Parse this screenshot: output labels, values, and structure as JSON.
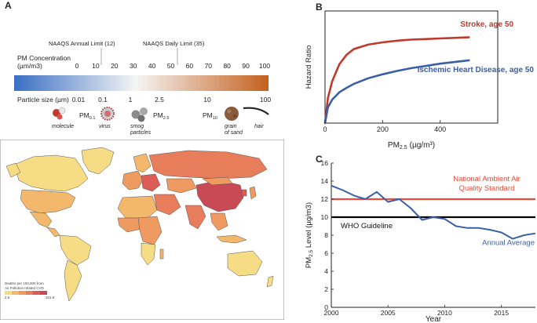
{
  "panels": {
    "a": {
      "label": "A"
    },
    "b": {
      "label": "B"
    },
    "c": {
      "label": "C"
    }
  },
  "scale": {
    "naaqs_annual": "NAAQS Annual Limit (12)",
    "naaqs_daily": "NAAQS Daily Limit (35)",
    "concentration_title_line1": "PM Concentration",
    "concentration_title_line2": "(µm/m3)",
    "ticks": [
      "0",
      "10",
      "20",
      "30",
      "40",
      "50",
      "60",
      "70",
      "80",
      "90",
      "100"
    ],
    "gradient": {
      "start": "#3a6fc4",
      "mid": "#f5f5f5",
      "end": "#c4601e"
    }
  },
  "particles": {
    "title": "Particle size (µm)",
    "sizes": [
      "0.01",
      "0.1",
      "1",
      "2.5",
      "10",
      "100"
    ],
    "molecule": "molecule",
    "pm01_main": "PM",
    "pm01_sub": "0.1",
    "virus": "virus",
    "smog_line1": "smog",
    "smog_line2": "particles",
    "pm25_main": "PM",
    "pm25_sub": "2.5",
    "pm10_main": "PM",
    "pm10_sub": "10",
    "sand_line1": "grain",
    "sand_line2": "of sand",
    "hair": "hair"
  },
  "map": {
    "legend_line1": "Deaths per 100,000 from",
    "legend_line2": "Air Pollution related CVD",
    "legend_min": "2.6",
    "legend_max": "101.9",
    "legend_colors": [
      "#f7dc86",
      "#f3b86c",
      "#ee9a60",
      "#e77d5a",
      "#dc5d57",
      "#c94a55"
    ],
    "ocean_color": "#ffffff",
    "border_color": "#555555"
  },
  "chart_data": [
    {
      "type": "line",
      "panel": "B",
      "title": "",
      "xlabel_main": "PM",
      "xlabel_sub": "2.5",
      "xlabel_unit": "(µg/m³)",
      "ylabel": "Hazard Ratio",
      "xlim": [
        0,
        600
      ],
      "ylim": [
        1,
        3
      ],
      "x_ticks": [
        "0",
        "200",
        "400"
      ],
      "x_tick_values": [
        0,
        200,
        400
      ],
      "y_ticks": [],
      "grid": false,
      "series": [
        {
          "name": "Stroke, age 50",
          "color": "#c0392b",
          "x": [
            0,
            10,
            25,
            50,
            75,
            100,
            150,
            200,
            250,
            300,
            350,
            400,
            450,
            500
          ],
          "y": [
            1.0,
            1.45,
            1.75,
            2.05,
            2.22,
            2.32,
            2.4,
            2.44,
            2.47,
            2.49,
            2.5,
            2.51,
            2.52,
            2.53
          ]
        },
        {
          "name": "Ischemic Heart Disease, age 50",
          "color": "#3a5fa8",
          "x": [
            0,
            10,
            25,
            50,
            75,
            100,
            150,
            200,
            250,
            300,
            350,
            400,
            450,
            500
          ],
          "y": [
            1.0,
            1.28,
            1.42,
            1.55,
            1.63,
            1.7,
            1.8,
            1.87,
            1.93,
            1.98,
            2.02,
            2.06,
            2.09,
            2.12
          ]
        }
      ]
    },
    {
      "type": "line",
      "panel": "C",
      "title": "",
      "xlabel": "Year",
      "ylabel_main": "PM",
      "ylabel_sub": "2.5",
      "ylabel_rest": " Level (µg/m3)",
      "xlim": [
        2000,
        2018
      ],
      "ylim": [
        0,
        16
      ],
      "x_ticks": [
        "2000",
        "2005",
        "2010",
        "2015"
      ],
      "x_tick_values": [
        2000,
        2005,
        2010,
        2015
      ],
      "y_ticks": [
        "0",
        "2",
        "4",
        "6",
        "8",
        "10",
        "12",
        "14",
        "16"
      ],
      "y_tick_values": [
        0,
        2,
        4,
        6,
        8,
        10,
        12,
        14,
        16
      ],
      "grid": false,
      "reference_lines": [
        {
          "name_line1": "National Ambient Air",
          "name_line2": "Quality Standard",
          "value": 12,
          "color": "#e74c3c"
        },
        {
          "name": "WHO Guideline",
          "value": 10,
          "color": "#000000"
        }
      ],
      "series": [
        {
          "name": "Annual Average",
          "color": "#3a5fa8",
          "x": [
            2000,
            2001,
            2002,
            2003,
            2004,
            2005,
            2006,
            2007,
            2008,
            2009,
            2010,
            2011,
            2012,
            2013,
            2014,
            2015,
            2016,
            2017,
            2018
          ],
          "y": [
            13.5,
            13.0,
            12.4,
            12.0,
            12.8,
            11.7,
            12.0,
            11.0,
            9.7,
            10.0,
            9.8,
            9.0,
            8.8,
            8.8,
            8.6,
            8.3,
            7.6,
            8.0,
            8.2
          ]
        }
      ]
    }
  ]
}
